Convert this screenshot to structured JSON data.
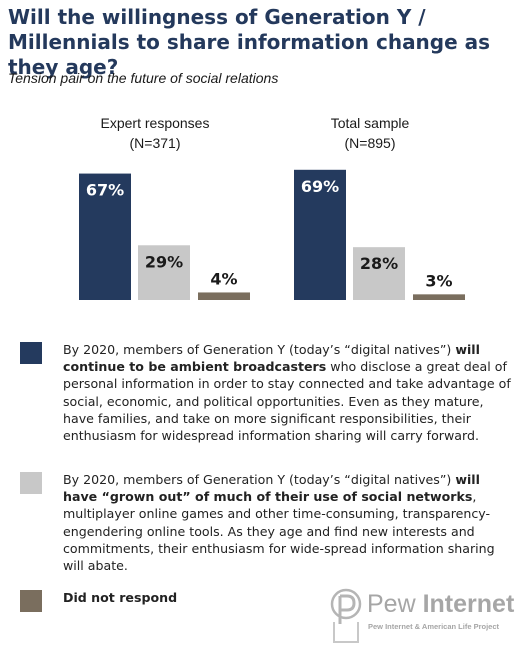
{
  "header": {
    "title": "Will the willingness of Generation Y / Millennials to share information change as they age?",
    "subtitle": "Tension pair on the future of social relations"
  },
  "chart_data": {
    "type": "bar",
    "title": "Will the willingness of Generation Y / Millennials to share information change as they age?",
    "subtitle": "Tension pair on the future of social relations",
    "groups": [
      {
        "name": "Expert responses",
        "n_label": "(N=371)"
      },
      {
        "name": "Total sample",
        "n_label": "(N=895)"
      }
    ],
    "series": [
      {
        "name": "continue to be ambient broadcasters",
        "color": "#243a5e",
        "values": [
          67,
          69
        ],
        "labels": [
          "67%",
          "69%"
        ]
      },
      {
        "name": "have grown out of much of their use of social networks",
        "color": "#c8c8c8",
        "values": [
          29,
          28
        ],
        "labels": [
          "29%",
          "28%"
        ]
      },
      {
        "name": "Did not respond",
        "color": "#7a6e5e",
        "values": [
          4,
          3
        ],
        "labels": [
          "4%",
          "3%"
        ]
      }
    ],
    "ylim": [
      0,
      100
    ],
    "grid": false,
    "legend_position": "bottom"
  },
  "legend": [
    {
      "color": "#243a5e",
      "text_before": "By 2020, members of Generation Y (today’s “digital natives”) ",
      "text_bold": "will continue to be ambient broadcasters",
      "text_after": " who disclose a great deal of personal information in order to stay connected and take advantage of social, economic, and political opportunities. Even as they mature, have families, and take on more significant responsibilities, their enthusiasm for widespread information sharing will carry forward."
    },
    {
      "color": "#c8c8c8",
      "text_before": "By 2020, members of Generation Y (today’s “digital natives”) ",
      "text_bold": "will have “grown out” of much of their use of social networks",
      "text_after": ", multiplayer online games and other time-consuming, transparency-engendering online tools. As they age and find new interests and commitments, their enthusiasm for wide-spread information sharing will abate."
    },
    {
      "color": "#7a6e5e",
      "text_before": "",
      "text_bold": "Did not respond",
      "text_after": ""
    }
  ],
  "logo": {
    "word_light": "Pew ",
    "word_strong": "Internet",
    "tagline": "Pew Internet & American Life Project"
  }
}
